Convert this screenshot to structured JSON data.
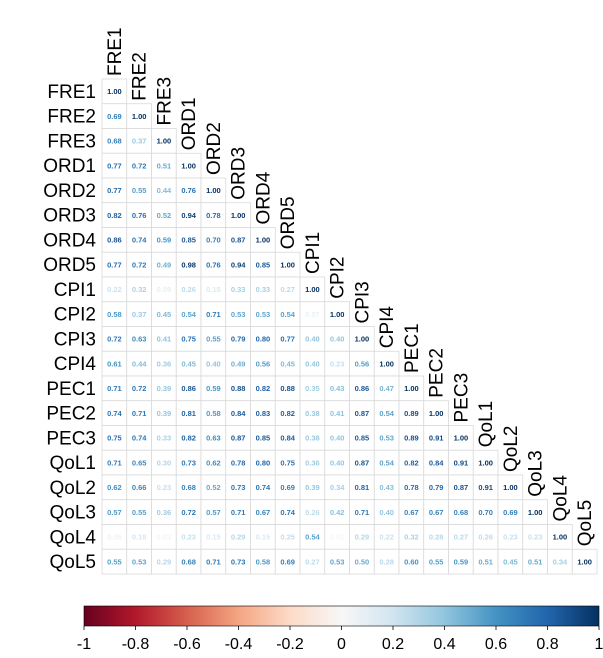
{
  "chart_data": {
    "type": "heatmap",
    "variables": [
      "FRE1",
      "FRE2",
      "FRE3",
      "ORD1",
      "ORD2",
      "ORD3",
      "ORD4",
      "ORD5",
      "CPI1",
      "CPI2",
      "CPI3",
      "CPI4",
      "PEC1",
      "PEC2",
      "PEC3",
      "QoL1",
      "QoL2",
      "QoL3",
      "QoL4",
      "QoL5"
    ],
    "lower_triangle": [
      [
        "1.00"
      ],
      [
        "0.69",
        "1.00"
      ],
      [
        "0.68",
        "0.37",
        "1.00"
      ],
      [
        "0.77",
        "0.72",
        "0.51",
        "1.00"
      ],
      [
        "0.77",
        "0.55",
        "0.44",
        "0.76",
        "1.00"
      ],
      [
        "0.82",
        "0.76",
        "0.52",
        "0.94",
        "0.78",
        "1.00"
      ],
      [
        "0.86",
        "0.74",
        "0.59",
        "0.85",
        "0.70",
        "0.87",
        "1.00"
      ],
      [
        "0.77",
        "0.72",
        "0.49",
        "0.98",
        "0.76",
        "0.94",
        "0.85",
        "1.00"
      ],
      [
        "0.22",
        "0.32",
        "0.09",
        "0.26",
        "0.15",
        "0.33",
        "0.33",
        "0.27",
        "1.00"
      ],
      [
        "0.58",
        "0.37",
        "0.45",
        "0.54",
        "0.71",
        "0.53",
        "0.53",
        "0.54",
        "0.07",
        "1.00"
      ],
      [
        "0.72",
        "0.63",
        "0.41",
        "0.75",
        "0.55",
        "0.79",
        "0.80",
        "0.77",
        "0.40",
        "0.40",
        "1.00"
      ],
      [
        "0.61",
        "0.44",
        "0.36",
        "0.45",
        "0.40",
        "0.49",
        "0.56",
        "0.45",
        "0.40",
        "0.23",
        "0.56",
        "1.00"
      ],
      [
        "0.71",
        "0.72",
        "0.39",
        "0.86",
        "0.59",
        "0.88",
        "0.82",
        "0.88",
        "0.35",
        "0.43",
        "0.86",
        "0.47",
        "1.00"
      ],
      [
        "0.74",
        "0.71",
        "0.39",
        "0.81",
        "0.58",
        "0.84",
        "0.83",
        "0.82",
        "0.38",
        "0.41",
        "0.87",
        "0.54",
        "0.89",
        "1.00"
      ],
      [
        "0.75",
        "0.74",
        "0.33",
        "0.82",
        "0.63",
        "0.87",
        "0.85",
        "0.84",
        "0.38",
        "0.40",
        "0.85",
        "0.53",
        "0.89",
        "0.91",
        "1.00"
      ],
      [
        "0.71",
        "0.65",
        "0.30",
        "0.73",
        "0.62",
        "0.78",
        "0.80",
        "0.75",
        "0.36",
        "0.40",
        "0.87",
        "0.54",
        "0.82",
        "0.84",
        "0.91",
        "1.00"
      ],
      [
        "0.62",
        "0.66",
        "0.23",
        "0.68",
        "0.52",
        "0.73",
        "0.74",
        "0.69",
        "0.39",
        "0.34",
        "0.81",
        "0.43",
        "0.78",
        "0.79",
        "0.87",
        "0.91",
        "1.00"
      ],
      [
        "0.57",
        "0.55",
        "0.36",
        "0.72",
        "0.57",
        "0.71",
        "0.67",
        "0.74",
        "0.26",
        "0.42",
        "0.71",
        "0.40",
        "0.67",
        "0.67",
        "0.68",
        "0.70",
        "0.69",
        "1.00"
      ],
      [
        "0.05",
        "0.18",
        "0.03",
        "0.23",
        "0.15",
        "0.29",
        "0.15",
        "0.25",
        "0.54",
        "0.01",
        "0.29",
        "0.22",
        "0.32",
        "0.28",
        "0.27",
        "0.26",
        "0.23",
        "0.23",
        "1.00"
      ],
      [
        "0.55",
        "0.53",
        "0.29",
        "0.68",
        "0.71",
        "0.73",
        "0.58",
        "0.69",
        "0.27",
        "0.53",
        "0.50",
        "0.28",
        "0.60",
        "0.55",
        "0.59",
        "0.51",
        "0.45",
        "0.51",
        "0.34",
        "1.00"
      ]
    ],
    "colorbar": {
      "range": [
        -1,
        1
      ],
      "ticks": [
        "-1",
        "-0.8",
        "-0.6",
        "-0.4",
        "-0.2",
        "0",
        "0.2",
        "0.4",
        "0.6",
        "0.8",
        "1"
      ],
      "colors": {
        "neg": "#67001f",
        "mid": "#f7f7f7",
        "pos": "#053061"
      }
    }
  }
}
